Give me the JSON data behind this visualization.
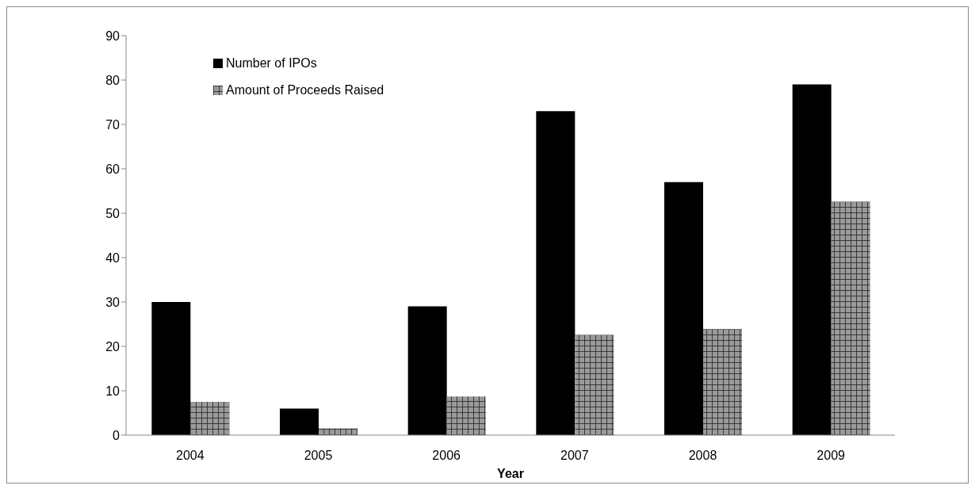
{
  "chart_data": {
    "type": "bar",
    "xlabel": "Year",
    "categories": [
      "2004",
      "2005",
      "2006",
      "2007",
      "2008",
      "2009"
    ],
    "series": [
      {
        "name": "Number of IPOs",
        "color": "#000000",
        "values": [
          30,
          6,
          29,
          73,
          57,
          79
        ]
      },
      {
        "name": "Amount of Proceeds Raised",
        "color": "#9a9a9a",
        "values": [
          7.5,
          1.5,
          8.7,
          22.6,
          23.9,
          52.6
        ]
      }
    ],
    "ylim": [
      0,
      90
    ],
    "yticks": [
      0,
      10,
      20,
      30,
      40,
      50,
      60,
      70,
      80,
      90
    ],
    "grid": false,
    "legend": "top left"
  }
}
